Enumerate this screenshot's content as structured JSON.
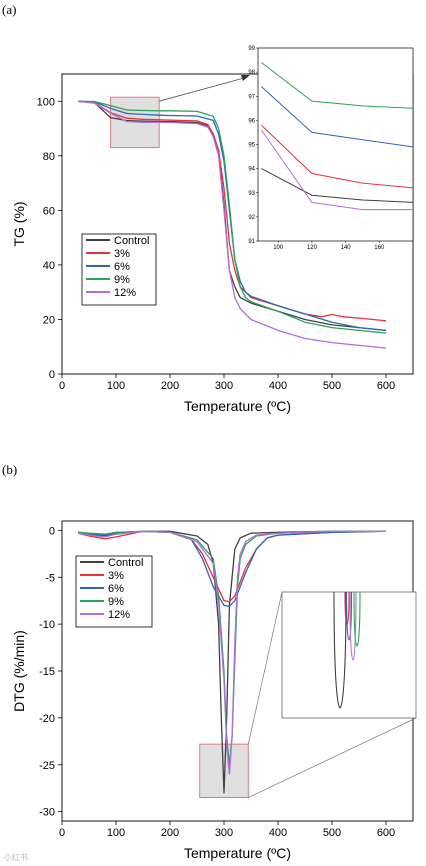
{
  "panel_labels": [
    "(a)",
    "(b)"
  ],
  "colors": {
    "Control": "#404040",
    "3%": "#e8313a",
    "6%": "#2e66b1",
    "9%": "#2ba25a",
    "12%": "#b06fd8",
    "highlight_fill": "#d9d9d9",
    "highlight_stroke": "#e07070"
  },
  "watermark": "小红书",
  "chart_data": [
    {
      "type": "line",
      "panel": "(a)",
      "xlabel": "Temperature (ºC)",
      "ylabel": "TG (%)",
      "xlim": [
        0,
        650
      ],
      "ylim": [
        0,
        110
      ],
      "xticks": [
        0,
        100,
        200,
        300,
        400,
        500,
        600
      ],
      "yticks": [
        0,
        20,
        40,
        60,
        80,
        100
      ],
      "legend": "lower-left",
      "grid": false,
      "series": [
        {
          "name": "Control",
          "x": [
            30,
            60,
            90,
            120,
            150,
            180,
            200,
            250,
            270,
            280,
            290,
            300,
            310,
            320,
            330,
            350,
            400,
            450,
            500,
            550,
            600
          ],
          "y": [
            100,
            99.5,
            94,
            92.9,
            92.7,
            92.6,
            92.6,
            92.2,
            91,
            88,
            82,
            62,
            38,
            32,
            28,
            26,
            23,
            20,
            18,
            17,
            16
          ]
        },
        {
          "name": "3%",
          "x": [
            30,
            60,
            90,
            120,
            150,
            180,
            200,
            250,
            270,
            280,
            290,
            300,
            310,
            320,
            330,
            350,
            400,
            450,
            480,
            500,
            520,
            550,
            600
          ],
          "y": [
            100,
            99.5,
            95.8,
            93.8,
            93.4,
            93.2,
            93.1,
            92.8,
            91.5,
            88,
            82,
            68,
            48,
            38,
            32,
            28,
            25,
            22,
            21,
            21.8,
            21,
            20.5,
            19.5
          ]
        },
        {
          "name": "6%",
          "x": [
            30,
            60,
            90,
            120,
            150,
            180,
            200,
            250,
            280,
            290,
            300,
            310,
            320,
            330,
            340,
            350,
            400,
            450,
            500,
            550,
            600
          ],
          "y": [
            100,
            99.8,
            97.4,
            95.5,
            95.2,
            94.9,
            94.8,
            94.6,
            93,
            88,
            78,
            60,
            42,
            34,
            30,
            28.5,
            25,
            22,
            19,
            17,
            16
          ]
        },
        {
          "name": "9%",
          "x": [
            30,
            60,
            90,
            120,
            150,
            180,
            200,
            250,
            280,
            290,
            300,
            310,
            320,
            330,
            340,
            350,
            400,
            450,
            500,
            550,
            600
          ],
          "y": [
            100,
            99.9,
            98.4,
            96.8,
            96.6,
            96.5,
            96.5,
            96.3,
            94.5,
            90,
            80,
            62,
            42,
            32,
            28,
            26.5,
            23,
            19,
            17,
            16,
            15
          ]
        },
        {
          "name": "12%",
          "x": [
            30,
            60,
            90,
            120,
            150,
            180,
            200,
            250,
            270,
            280,
            290,
            300,
            310,
            320,
            330,
            350,
            400,
            450,
            500,
            550,
            600
          ],
          "y": [
            100,
            99.3,
            95.6,
            92.6,
            92.3,
            92.3,
            92.2,
            91.8,
            90.5,
            87,
            80,
            60,
            38,
            28,
            24,
            20,
            16,
            13,
            11.5,
            10.5,
            9.5
          ]
        }
      ],
      "inset": {
        "xlim": [
          88,
          180
        ],
        "ylim": [
          91,
          99
        ],
        "xticks": [
          100,
          120,
          140,
          160
        ],
        "yticks": [
          91,
          92,
          93,
          94,
          95,
          96,
          97,
          98,
          99
        ],
        "highlight_region": {
          "x": [
            90,
            180
          ],
          "y": [
            83,
            101.5
          ]
        }
      }
    },
    {
      "type": "line",
      "panel": "(b)",
      "xlabel": "Temperature (ºC)",
      "ylabel": "DTG (%/min)",
      "xlim": [
        0,
        650
      ],
      "ylim": [
        -31,
        1
      ],
      "xticks": [
        0,
        100,
        200,
        300,
        400,
        500,
        600
      ],
      "yticks": [
        0,
        -5,
        -10,
        -15,
        -20,
        -25,
        -30
      ],
      "legend": "center-left",
      "grid": false,
      "series": [
        {
          "name": "Control",
          "x": [
            30,
            50,
            80,
            100,
            150,
            200,
            250,
            270,
            280,
            290,
            295,
            300,
            305,
            310,
            320,
            330,
            350,
            400,
            500,
            600
          ],
          "y": [
            -0.2,
            -0.4,
            -0.6,
            -0.4,
            -0.1,
            -0.1,
            -0.6,
            -1.5,
            -3.5,
            -10,
            -20,
            -28,
            -20,
            -8,
            -2,
            -0.8,
            -0.3,
            -0.2,
            -0.1,
            -0.1
          ]
        },
        {
          "name": "3%",
          "x": [
            30,
            50,
            80,
            100,
            150,
            200,
            240,
            260,
            280,
            300,
            310,
            320,
            340,
            360,
            380,
            400,
            500,
            600
          ],
          "y": [
            -0.3,
            -0.6,
            -0.9,
            -0.7,
            -0.1,
            -0.2,
            -1,
            -2.5,
            -5,
            -7.5,
            -7.6,
            -7,
            -4,
            -2,
            -0.8,
            -0.5,
            -0.2,
            -0.1
          ]
        },
        {
          "name": "6%",
          "x": [
            30,
            50,
            80,
            100,
            150,
            200,
            240,
            260,
            280,
            300,
            310,
            320,
            340,
            360,
            380,
            400,
            500,
            600
          ],
          "y": [
            -0.2,
            -0.4,
            -0.5,
            -0.3,
            -0.1,
            -0.2,
            -1,
            -3,
            -6,
            -8,
            -8.1,
            -7.5,
            -4.5,
            -2,
            -0.8,
            -0.5,
            -0.2,
            -0.1
          ]
        },
        {
          "name": "9%",
          "x": [
            30,
            50,
            80,
            100,
            150,
            200,
            250,
            280,
            290,
            300,
            305,
            310,
            315,
            320,
            325,
            330,
            340,
            360,
            400,
            500,
            600
          ],
          "y": [
            -0.2,
            -0.3,
            -0.4,
            -0.2,
            -0.1,
            -0.2,
            -1,
            -3,
            -7,
            -15,
            -22,
            -25,
            -22,
            -14,
            -6,
            -3,
            -1.5,
            -0.6,
            -0.3,
            -0.1,
            -0.1
          ]
        },
        {
          "name": "12%",
          "x": [
            30,
            50,
            80,
            100,
            150,
            200,
            250,
            280,
            290,
            300,
            305,
            310,
            315,
            320,
            325,
            330,
            340,
            360,
            400,
            500,
            600
          ],
          "y": [
            -0.3,
            -0.5,
            -0.7,
            -0.4,
            -0.1,
            -0.2,
            -1.2,
            -3.5,
            -8,
            -16,
            -23,
            -26,
            -22,
            -12,
            -5,
            -2.5,
            -1.2,
            -0.5,
            -0.3,
            -0.1,
            -0.1
          ]
        }
      ],
      "inset": {
        "highlight_region": {
          "x": [
            255,
            345
          ],
          "y": [
            -28.5,
            -22.8
          ]
        }
      }
    }
  ]
}
